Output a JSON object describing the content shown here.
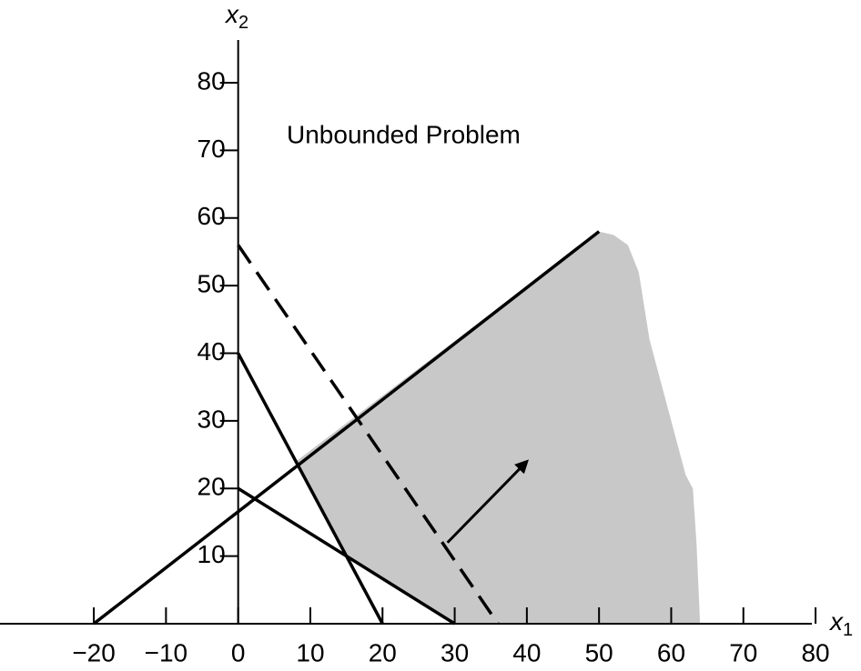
{
  "chart_data": {
    "type": "line",
    "title": "Unbounded Problem",
    "xlabel": "x",
    "xlabel_sub": "1",
    "ylabel": "x",
    "ylabel_sub": "2",
    "xlim": [
      -33,
      81
    ],
    "ylim": [
      0,
      87
    ],
    "xticks": [
      {
        "value": -20,
        "label": "−20"
      },
      {
        "value": -10,
        "label": "−10"
      },
      0,
      10,
      20,
      30,
      40,
      50,
      60,
      70,
      80
    ],
    "yticks": [
      10,
      20,
      30,
      40,
      50,
      60,
      70,
      80
    ],
    "region": {
      "color": "#c8c8c8",
      "x": [
        8,
        15,
        30,
        64,
        63.5,
        63,
        62,
        60,
        57,
        55.5,
        54,
        52,
        50
      ],
      "y": [
        24,
        10,
        0,
        0,
        12,
        20,
        22,
        30,
        42,
        52,
        56,
        57.5,
        58
      ]
    },
    "series": [
      {
        "color": "#000000",
        "dashed": false,
        "x": [
          -20,
          50
        ],
        "values": [
          0,
          58
        ]
      },
      {
        "color": "#000000",
        "dashed": false,
        "x": [
          0,
          20
        ],
        "values": [
          40,
          0
        ]
      },
      {
        "color": "#000000",
        "dashed": false,
        "x": [
          0,
          30
        ],
        "values": [
          20,
          0
        ]
      },
      {
        "color": "#000000",
        "dashed": true,
        "x": [
          0,
          36
        ],
        "values": [
          56,
          0
        ]
      }
    ],
    "arrow": {
      "x": [
        29,
        40
      ],
      "y": [
        12,
        24
      ]
    }
  }
}
